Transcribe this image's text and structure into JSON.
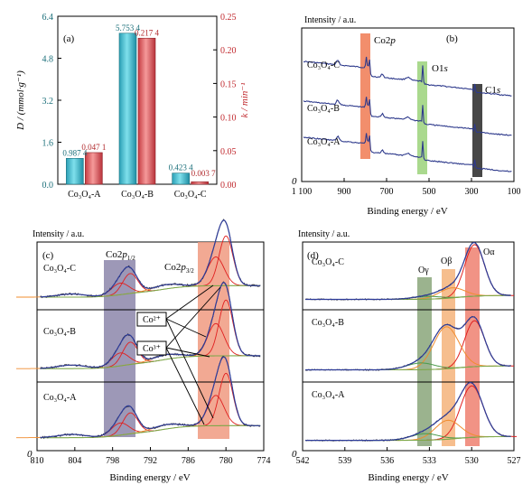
{
  "colors": {
    "bar_d": "#3ab8cc",
    "bar_k": "#e0555a",
    "axis_red": "#c0282d",
    "axis_teal": "#1b6f7a",
    "label_teal": "#1b6f7a",
    "label_red": "#b0282b",
    "survey": "#2e3a8c",
    "co2p_band": "#f07a52",
    "o1s_band": "#9bd27a",
    "c1s_band": "#333333",
    "co2p12_band": "#8c86aa",
    "co2p32_band": "#f09a80",
    "og_band": "#8aa67a",
    "ob_band": "#f5b37a",
    "oa_band": "#ef8070",
    "exp": "#2b2b2b",
    "env": "#2f3d9a",
    "bg": "#7fa84a",
    "comp_red": "#e02020",
    "comp_orange": "#f08c2e",
    "comp_green": "#4a9a4a"
  },
  "chart_data": [
    {
      "panel": "(a)",
      "type": "bar",
      "categories": [
        "Co₃O₄-A",
        "Co₃O₄-B",
        "Co₃O₄-C"
      ],
      "series": [
        {
          "name": "D",
          "axis": "left",
          "values": [
            0.9874,
            5.7534,
            0.4234
          ],
          "labels": [
            "0.987 4",
            "5.753 4",
            "0.423 4"
          ]
        },
        {
          "name": "k",
          "axis": "right",
          "values": [
            0.0471,
            0.2174,
            0.0037
          ],
          "labels": [
            "0.047 1",
            "0.217 4",
            "0.003 7"
          ]
        }
      ],
      "ylabel_left": "D / (mmol·g⁻¹)",
      "ylabel_right": "k / min⁻¹",
      "ylim_left": [
        0,
        6.4
      ],
      "ylim_right": [
        0,
        0.25
      ],
      "yticks_left": [
        "0.0",
        "1.6",
        "3.2",
        "4.8",
        "6.4"
      ],
      "yticks_right": [
        "0.00",
        "0.05",
        "0.10",
        "0.15",
        "0.20",
        "0.25"
      ]
    },
    {
      "panel": "(b)",
      "type": "line",
      "ylabel": "Intensity / a.u.",
      "xlabel": "Binding energy / eV",
      "xticks": [
        "1 100",
        "900",
        "700",
        "500",
        "300",
        "100"
      ],
      "xlim": [
        1100,
        100
      ],
      "origin_label": "0",
      "series_labels": [
        "Co₃O₄-C",
        "Co₃O₄-B",
        "Co₃O₄-A"
      ],
      "band_labels": [
        "Co2p",
        "O1s",
        "C1s"
      ]
    },
    {
      "panel": "(c)",
      "type": "line",
      "ylabel": "Intensity / a.u.",
      "xlabel": "Binding energy / eV",
      "xticks": [
        "810",
        "804",
        "798",
        "792",
        "786",
        "780",
        "774"
      ],
      "xlim": [
        810,
        774
      ],
      "origin_label": "0",
      "series_labels": [
        "Co₃O₄-C",
        "Co₃O₄-B",
        "Co₃O₄-A"
      ],
      "band_labels": [
        "Co2p₁/₂",
        "Co2p₃/₂"
      ],
      "annotations": [
        "Co²⁺",
        "Co³⁺"
      ]
    },
    {
      "panel": "(d)",
      "type": "line",
      "ylabel": "Intensity / a.u.",
      "xlabel": "Binding energy / eV",
      "xticks": [
        "542",
        "539",
        "536",
        "533",
        "530",
        "527"
      ],
      "xlim": [
        542,
        527
      ],
      "origin_label": "0",
      "series_labels": [
        "Co₃O₄-C",
        "Co₃O₄-B",
        "Co₃O₄-A"
      ],
      "band_labels": [
        "Oγ",
        "Oβ",
        "Oα"
      ]
    }
  ]
}
